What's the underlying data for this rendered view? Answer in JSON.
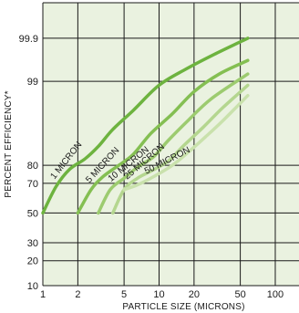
{
  "chart_data": {
    "type": "line",
    "xlabel": "PARTICLE SIZE (MICRONS)",
    "ylabel": "PERCENT EFFICIENCY*",
    "x_scale": "log",
    "y_scale": "probability",
    "xlim": [
      1,
      160
    ],
    "x_ticks": [
      1,
      2,
      5,
      10,
      20,
      50,
      100
    ],
    "x_tick_labels": [
      "1",
      "2",
      "5",
      "10",
      "20",
      "50",
      "100"
    ],
    "y_ticks": [
      10,
      20,
      30,
      50,
      70,
      80,
      99,
      99.9
    ],
    "y_tick_labels": [
      "10",
      "20",
      "30",
      "50",
      "70",
      "80",
      "99",
      "99.9"
    ],
    "grid": true,
    "background_color": "#eaf2e0",
    "grid_color": "#1a1a1a",
    "series": [
      {
        "name": "1 MICRON",
        "color": "#6db33f",
        "points": [
          [
            1,
            50
          ],
          [
            1.3,
            68
          ],
          [
            1.7,
            78
          ],
          [
            2.3,
            83
          ],
          [
            3,
            88
          ],
          [
            4,
            93
          ],
          [
            6,
            96.5
          ],
          [
            10,
            98.8
          ],
          [
            17,
            99.45
          ],
          [
            30,
            99.75
          ],
          [
            58,
            99.9
          ]
        ]
      },
      {
        "name": "5 MICRON",
        "color": "#84bf52",
        "points": [
          [
            2,
            50
          ],
          [
            2.6,
            66
          ],
          [
            3.3,
            74
          ],
          [
            4.5,
            80
          ],
          [
            6,
            85
          ],
          [
            8.5,
            92
          ],
          [
            13,
            96
          ],
          [
            20,
            98.4
          ],
          [
            33,
            99.3
          ],
          [
            58,
            99.65
          ]
        ]
      },
      {
        "name": "10 MICRON",
        "color": "#9ccb6f",
        "points": [
          [
            3,
            50
          ],
          [
            3.8,
            66
          ],
          [
            5,
            73
          ],
          [
            6.5,
            79
          ],
          [
            9,
            84
          ],
          [
            12,
            90
          ],
          [
            18,
            95
          ],
          [
            28,
            97.8
          ],
          [
            58,
            99.3
          ]
        ]
      },
      {
        "name": "25 MICRON",
        "color": "#b4d68f",
        "points": [
          [
            4,
            50
          ],
          [
            5,
            66
          ],
          [
            6.5,
            73
          ],
          [
            8.5,
            77
          ],
          [
            12,
            82
          ],
          [
            16,
            88
          ],
          [
            24,
            93.5
          ],
          [
            35,
            96.8
          ],
          [
            58,
            98.8
          ]
        ]
      },
      {
        "name": "50 MICRON",
        "color": "#c9e1ac",
        "points": [
          [
            5,
            66
          ],
          [
            6.5,
            69
          ],
          [
            9,
            74
          ],
          [
            13,
            80
          ],
          [
            18,
            86
          ],
          [
            25,
            91
          ],
          [
            36,
            95
          ],
          [
            58,
            98.1
          ]
        ]
      }
    ]
  }
}
